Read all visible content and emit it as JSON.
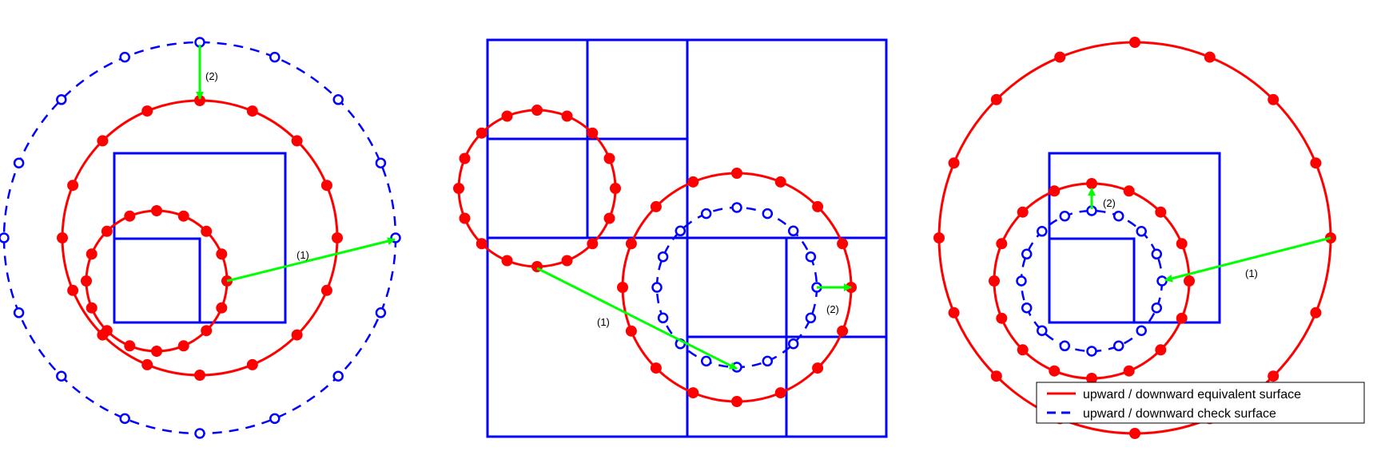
{
  "panels": [
    {
      "arrow_labels": [
        "(1)",
        "(2)"
      ]
    },
    {
      "arrow_labels": [
        "(1)",
        "(2)"
      ]
    },
    {
      "arrow_labels": [
        "(1)",
        "(2)"
      ]
    }
  ],
  "legend": {
    "placement": "bottom-right",
    "items": [
      {
        "label": "upward / downward equivalent surface",
        "style": "solid",
        "color": "#ff0000"
      },
      {
        "label": "upward / downward check surface",
        "style": "dashed",
        "color": "#0000ff"
      }
    ]
  },
  "colors": {
    "box": "#0000ff",
    "equivalent_surface": "#ff0000",
    "check_surface": "#0000ff",
    "arrow": "#00ff00"
  }
}
